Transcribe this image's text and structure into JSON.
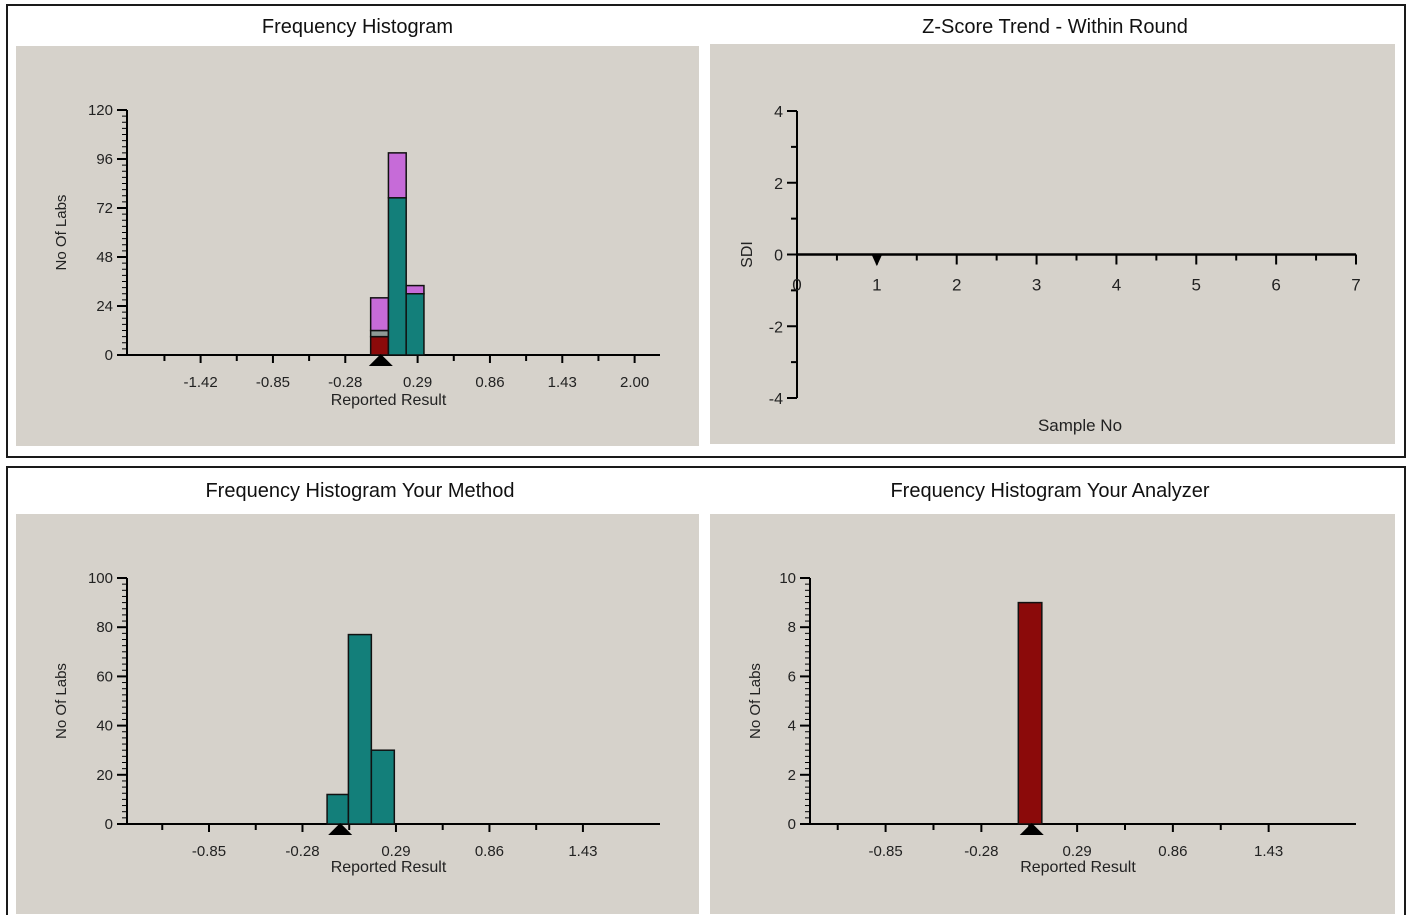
{
  "panels": {
    "top_left_title": "Frequency Histogram",
    "top_right_title": "Z-Score Trend - Within Round",
    "bottom_left_title": "Frequency Histogram Your Method",
    "bottom_right_title": "Frequency Histogram Your  Analyzer"
  },
  "colors": {
    "background": "#d6d2cb",
    "your_method": "#137f7a",
    "other": "#c66bd8",
    "your_analyzer": "#8b0a0a",
    "gray_segment": "#8f9a96"
  },
  "chart_data": [
    {
      "type": "bar",
      "title": "Frequency Histogram",
      "xlabel": "Reported Result",
      "ylabel": "No Of Labs",
      "ylim": [
        0,
        120
      ],
      "yticks": [
        "0",
        "24",
        "48",
        "72",
        "96",
        "120"
      ],
      "xticks": [
        "-1.42",
        "-0.85",
        "-0.28",
        "0.29",
        "0.86",
        "1.43",
        "2.00"
      ],
      "x_tick_values": [
        -1.42,
        -0.85,
        -0.28,
        0.29,
        0.86,
        1.43,
        2.0
      ],
      "xlim": [
        -2.0,
        2.2
      ],
      "bins": [
        {
          "from": -0.08,
          "to": 0.06,
          "segments": [
            {
              "value": 9,
              "color": "#8b0a0a"
            },
            {
              "value": 3,
              "color": "#8f9a96"
            },
            {
              "value": 16,
              "color": "#c66bd8"
            }
          ]
        },
        {
          "from": 0.06,
          "to": 0.2,
          "segments": [
            {
              "value": 77,
              "color": "#137f7a"
            },
            {
              "value": 22,
              "color": "#c66bd8"
            }
          ]
        },
        {
          "from": 0.2,
          "to": 0.34,
          "segments": [
            {
              "value": 30,
              "color": "#137f7a"
            },
            {
              "value": 4,
              "color": "#c66bd8"
            }
          ]
        }
      ],
      "marker_x": 0.0
    },
    {
      "type": "scatter",
      "title": "Z-Score Trend - Within Round",
      "xlabel": "Sample No",
      "ylabel": "SDI",
      "xlim": [
        0,
        7
      ],
      "ylim": [
        -4,
        4
      ],
      "xticks": [
        "0",
        "1",
        "2",
        "3",
        "4",
        "5",
        "6",
        "7"
      ],
      "yticks": [
        "4",
        "2",
        "0",
        "-2",
        "-4"
      ],
      "x_tick_values": [
        0,
        1,
        2,
        3,
        4,
        5,
        6,
        7
      ],
      "y_tick_values": [
        4,
        2,
        0,
        -2,
        -4
      ],
      "points": [
        {
          "x": 1,
          "y": -0.1
        }
      ]
    },
    {
      "type": "bar",
      "title": "Frequency Histogram Your Method",
      "xlabel": "Reported Result",
      "ylabel": "No Of Labs",
      "ylim": [
        0,
        100
      ],
      "yticks": [
        "0",
        "20",
        "40",
        "60",
        "80",
        "100"
      ],
      "xticks": [
        "-0.85",
        "-0.28",
        "0.29",
        "0.86",
        "1.43"
      ],
      "x_tick_values": [
        -0.85,
        -0.28,
        0.29,
        0.86,
        1.43
      ],
      "xlim": [
        -1.35,
        1.9
      ],
      "bins": [
        {
          "from": -0.13,
          "to": -0.0,
          "segments": [
            {
              "value": 12,
              "color": "#137f7a"
            }
          ]
        },
        {
          "from": 0.0,
          "to": 0.14,
          "segments": [
            {
              "value": 77,
              "color": "#137f7a"
            }
          ]
        },
        {
          "from": 0.14,
          "to": 0.28,
          "segments": [
            {
              "value": 30,
              "color": "#137f7a"
            }
          ]
        }
      ],
      "marker_x": -0.05
    },
    {
      "type": "bar",
      "title": "Frequency Histogram Your  Analyzer",
      "xlabel": "Reported Result",
      "ylabel": "No Of Labs",
      "ylim": [
        0,
        10
      ],
      "yticks": [
        "0",
        "2",
        "4",
        "6",
        "8",
        "10"
      ],
      "xticks": [
        "-0.85",
        "-0.28",
        "0.29",
        "0.86",
        "1.43"
      ],
      "x_tick_values": [
        -0.85,
        -0.28,
        0.29,
        0.86,
        1.43
      ],
      "xlim": [
        -1.3,
        1.95
      ],
      "bins": [
        {
          "from": -0.06,
          "to": 0.08,
          "segments": [
            {
              "value": 9,
              "color": "#8b0a0a"
            }
          ]
        }
      ],
      "marker_x": 0.02
    }
  ]
}
